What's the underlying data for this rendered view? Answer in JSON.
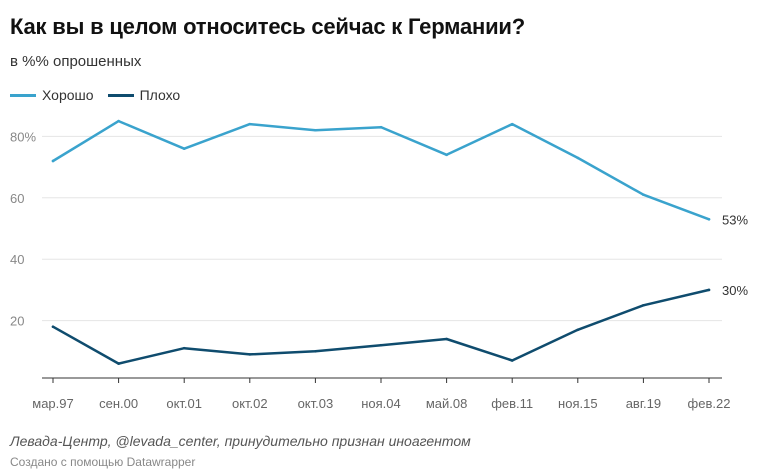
{
  "title": "Как вы в целом относитесь сейчас к Германии?",
  "subtitle": "в %% опрошенных",
  "source": "Левада-Центр, @levada_center, принудительно признан иноагентом",
  "credit": "Создано с помощью Datawrapper",
  "colors": {
    "good": "#3aa3cd",
    "bad": "#0f4c6e",
    "grid": "#e5e5e5",
    "axis": "#333333"
  },
  "chart_data": {
    "type": "line",
    "categories": [
      "мар.97",
      "сен.00",
      "окт.01",
      "окт.02",
      "окт.03",
      "ноя.04",
      "май.08",
      "фев.11",
      "ноя.15",
      "авг.19",
      "фев.22"
    ],
    "series": [
      {
        "name": "Хорошо",
        "values": [
          72,
          85,
          76,
          84,
          82,
          83,
          74,
          84,
          73,
          61,
          53
        ],
        "end_label": "53%"
      },
      {
        "name": "Плохо",
        "values": [
          18,
          6,
          11,
          9,
          10,
          12,
          14,
          7,
          17,
          25,
          30
        ],
        "end_label": "30%"
      }
    ],
    "y_ticks": [
      20,
      40,
      60,
      80
    ],
    "y_tick_labels": [
      "20",
      "40",
      "60",
      "80%"
    ],
    "ylim": [
      0,
      85
    ],
    "grid": true,
    "legend_position": "top-left"
  }
}
